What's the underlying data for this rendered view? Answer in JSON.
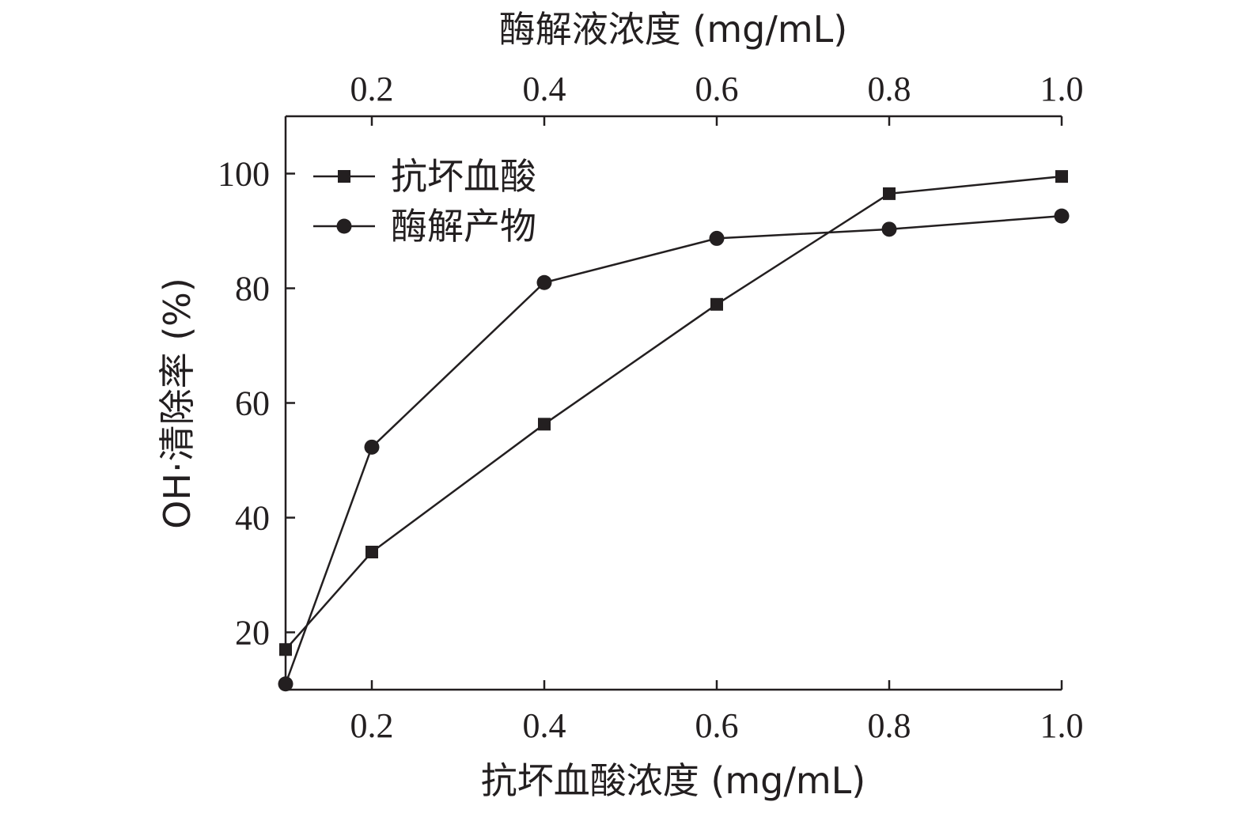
{
  "chart_data": {
    "type": "line",
    "xlabel_bottom": "抗坏血酸浓度 (mg/mL)",
    "xlabel_top": "酶解液浓度 (mg/mL)",
    "ylabel": "OH·清除率 (%)",
    "xlim": [
      0.1,
      1.0
    ],
    "ylim": [
      10,
      110
    ],
    "x_ticks": [
      "0.2",
      "0.4",
      "0.6",
      "0.8",
      "1.0"
    ],
    "x_tick_values": [
      0.2,
      0.4,
      0.6,
      0.8,
      1.0
    ],
    "y_ticks": [
      "20",
      "40",
      "60",
      "80",
      "100"
    ],
    "y_tick_values": [
      20,
      40,
      60,
      80,
      100
    ],
    "legend_position": "top-left",
    "grid": false,
    "series": [
      {
        "name": "抗坏血酸",
        "marker": "square",
        "color": "#231f20",
        "x": [
          0.1,
          0.2,
          0.4,
          0.6,
          0.8,
          1.0
        ],
        "y": [
          17,
          34,
          56.3,
          77.2,
          96.5,
          99.5
        ]
      },
      {
        "name": "酶解产物",
        "marker": "circle",
        "color": "#231f20",
        "x": [
          0.1,
          0.2,
          0.4,
          0.6,
          0.8,
          1.0
        ],
        "y": [
          11,
          52.3,
          81,
          88.7,
          90.3,
          92.6
        ]
      }
    ]
  }
}
